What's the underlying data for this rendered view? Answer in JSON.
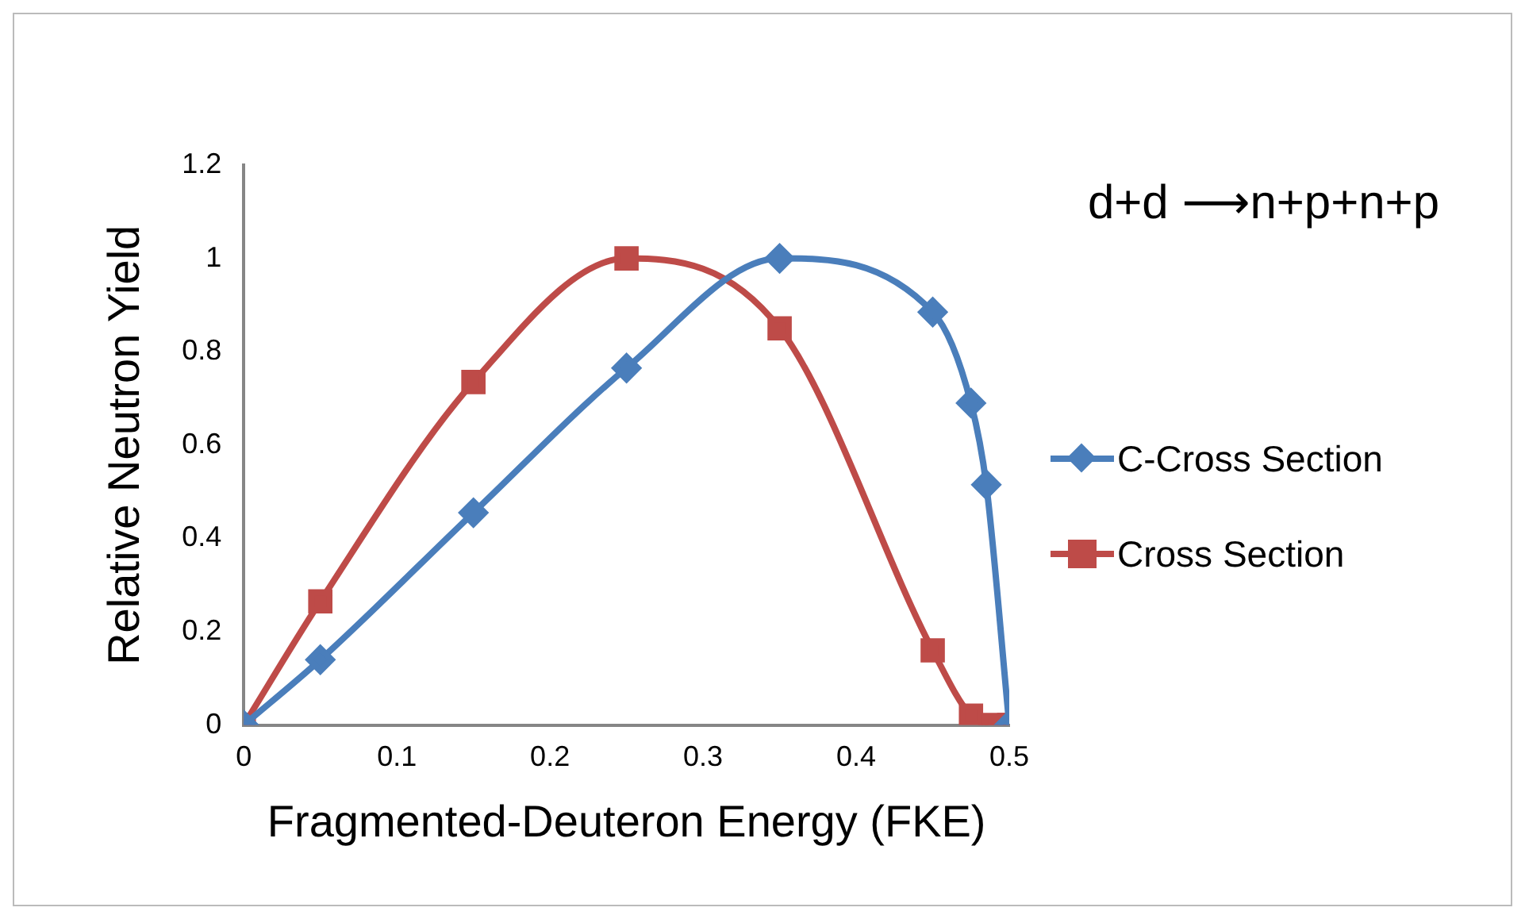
{
  "chart_data": {
    "type": "line",
    "xlabel": "Fragmented-Deuteron Energy (FKE)",
    "ylabel": "Relative Neutron Yield",
    "annotations": [
      "d+d ⟶n+p+n+p"
    ],
    "series": [
      {
        "name": "C-Cross Section",
        "color": "#4a7ebb",
        "marker": "diamond",
        "x": [
          0,
          0.05,
          0.15,
          0.25,
          0.35,
          0.45,
          0.475,
          0.485,
          0.5
        ],
        "values": [
          0,
          0.14,
          0.455,
          0.765,
          1.0,
          0.885,
          0.69,
          0.515,
          0
        ]
      },
      {
        "name": "Cross Section",
        "color": "#be4b48",
        "marker": "square",
        "x": [
          0,
          0.05,
          0.15,
          0.25,
          0.35,
          0.45,
          0.475,
          0.49,
          0.5
        ],
        "values": [
          0,
          0.265,
          0.735,
          1.0,
          0.85,
          0.16,
          0.02,
          0,
          0
        ]
      }
    ],
    "xlim": [
      0,
      0.5
    ],
    "xticks": [
      0,
      0.1,
      0.2,
      0.3,
      0.4,
      0.5
    ],
    "ylim": [
      0,
      1.2
    ],
    "yticks": [
      0,
      0.2,
      0.4,
      0.6,
      0.8,
      1,
      1.2
    ],
    "grid": false,
    "legend": "right"
  }
}
